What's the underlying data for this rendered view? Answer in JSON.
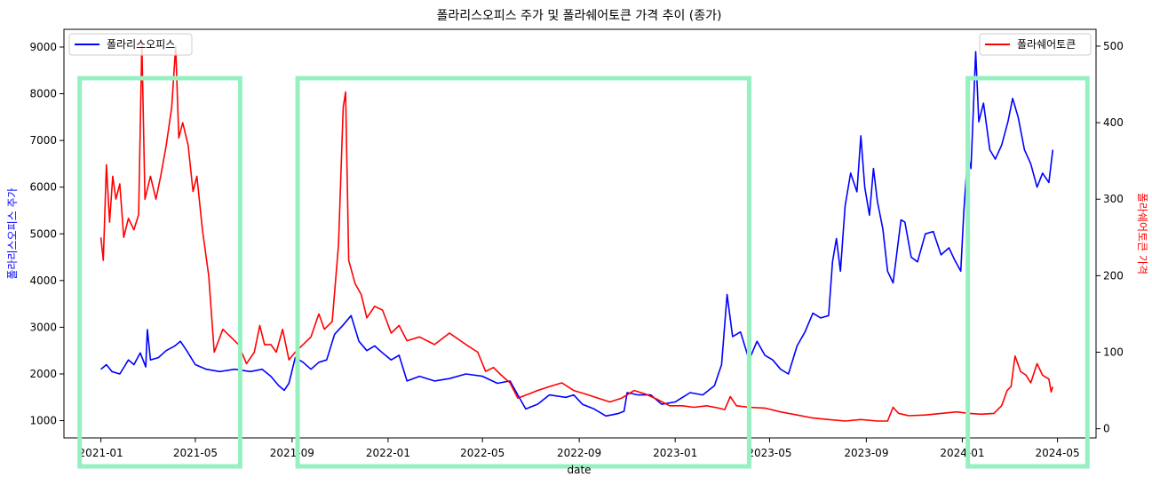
{
  "chart_data": {
    "type": "line",
    "title": "폴라리스오피스 주가 및 폴라쉐어토큰 가격 추이 (종가)",
    "xlabel": "date",
    "x_ticks": [
      "2021-01",
      "2021-05",
      "2021-09",
      "2022-01",
      "2022-05",
      "2022-09",
      "2023-01",
      "2023-05",
      "2023-09",
      "2024-01",
      "2024-05"
    ],
    "y_left": {
      "label": "폴라리스오피스 주가",
      "color": "#0000ff",
      "ylim": [
        630,
        9380
      ],
      "ticks": [
        1000,
        2000,
        3000,
        4000,
        5000,
        6000,
        7000,
        8000,
        9000
      ]
    },
    "y_right": {
      "label": "폴라쉐어토큰 가격",
      "color": "#ff0000",
      "ylim": [
        -12,
        522
      ],
      "ticks": [
        0,
        100,
        200,
        300,
        400,
        500
      ]
    },
    "series": [
      {
        "name": "폴라리스오피스",
        "axis": "left",
        "color": "#0000ff",
        "points": [
          [
            "2021-01-01",
            2100
          ],
          [
            "2021-01-08",
            2200
          ],
          [
            "2021-01-15",
            2050
          ],
          [
            "2021-01-25",
            2000
          ],
          [
            "2021-02-05",
            2300
          ],
          [
            "2021-02-12",
            2200
          ],
          [
            "2021-02-20",
            2450
          ],
          [
            "2021-02-27",
            2150
          ],
          [
            "2021-03-01",
            2950
          ],
          [
            "2021-03-05",
            2300
          ],
          [
            "2021-03-15",
            2350
          ],
          [
            "2021-03-25",
            2500
          ],
          [
            "2021-04-05",
            2600
          ],
          [
            "2021-04-12",
            2700
          ],
          [
            "2021-04-20",
            2500
          ],
          [
            "2021-05-01",
            2200
          ],
          [
            "2021-05-15",
            2100
          ],
          [
            "2021-06-01",
            2050
          ],
          [
            "2021-06-20",
            2100
          ],
          [
            "2021-07-10",
            2050
          ],
          [
            "2021-07-25",
            2100
          ],
          [
            "2021-08-05",
            1950
          ],
          [
            "2021-08-15",
            1750
          ],
          [
            "2021-08-22",
            1650
          ],
          [
            "2021-08-28",
            1800
          ],
          [
            "2021-09-05",
            2350
          ],
          [
            "2021-09-15",
            2250
          ],
          [
            "2021-09-25",
            2100
          ],
          [
            "2021-10-05",
            2250
          ],
          [
            "2021-10-15",
            2300
          ],
          [
            "2021-10-25",
            2850
          ],
          [
            "2021-11-05",
            3050
          ],
          [
            "2021-11-15",
            3250
          ],
          [
            "2021-11-25",
            2700
          ],
          [
            "2021-12-05",
            2500
          ],
          [
            "2021-12-15",
            2600
          ],
          [
            "2021-12-25",
            2450
          ],
          [
            "2022-01-05",
            2300
          ],
          [
            "2022-01-15",
            2400
          ],
          [
            "2022-01-25",
            1850
          ],
          [
            "2022-02-10",
            1950
          ],
          [
            "2022-03-01",
            1850
          ],
          [
            "2022-03-20",
            1900
          ],
          [
            "2022-04-10",
            2000
          ],
          [
            "2022-05-01",
            1950
          ],
          [
            "2022-05-20",
            1800
          ],
          [
            "2022-06-05",
            1850
          ],
          [
            "2022-06-15",
            1550
          ],
          [
            "2022-06-25",
            1250
          ],
          [
            "2022-07-10",
            1350
          ],
          [
            "2022-07-25",
            1550
          ],
          [
            "2022-08-15",
            1500
          ],
          [
            "2022-08-25",
            1550
          ],
          [
            "2022-09-05",
            1350
          ],
          [
            "2022-09-20",
            1250
          ],
          [
            "2022-10-05",
            1100
          ],
          [
            "2022-10-20",
            1150
          ],
          [
            "2022-10-28",
            1200
          ],
          [
            "2022-11-01",
            1600
          ],
          [
            "2022-11-15",
            1550
          ],
          [
            "2022-12-01",
            1550
          ],
          [
            "2022-12-15",
            1350
          ],
          [
            "2023-01-01",
            1400
          ],
          [
            "2023-01-20",
            1600
          ],
          [
            "2023-02-05",
            1550
          ],
          [
            "2023-02-20",
            1750
          ],
          [
            "2023-03-01",
            2200
          ],
          [
            "2023-03-08",
            3700
          ],
          [
            "2023-03-15",
            2800
          ],
          [
            "2023-03-25",
            2900
          ],
          [
            "2023-04-05",
            2300
          ],
          [
            "2023-04-15",
            2700
          ],
          [
            "2023-04-25",
            2400
          ],
          [
            "2023-05-05",
            2300
          ],
          [
            "2023-05-15",
            2100
          ],
          [
            "2023-05-25",
            2000
          ],
          [
            "2023-06-05",
            2600
          ],
          [
            "2023-06-15",
            2900
          ],
          [
            "2023-06-25",
            3300
          ],
          [
            "2023-07-05",
            3200
          ],
          [
            "2023-07-15",
            3250
          ],
          [
            "2023-07-20",
            4400
          ],
          [
            "2023-07-25",
            4900
          ],
          [
            "2023-07-30",
            4200
          ],
          [
            "2023-08-05",
            5600
          ],
          [
            "2023-08-12",
            6300
          ],
          [
            "2023-08-20",
            5900
          ],
          [
            "2023-08-25",
            7100
          ],
          [
            "2023-08-30",
            6000
          ],
          [
            "2023-09-05",
            5400
          ],
          [
            "2023-09-10",
            6400
          ],
          [
            "2023-09-15",
            5700
          ],
          [
            "2023-09-22",
            5100
          ],
          [
            "2023-09-28",
            4200
          ],
          [
            "2023-10-05",
            3950
          ],
          [
            "2023-10-15",
            5300
          ],
          [
            "2023-10-20",
            5250
          ],
          [
            "2023-10-28",
            4500
          ],
          [
            "2023-11-05",
            4400
          ],
          [
            "2023-11-15",
            5000
          ],
          [
            "2023-11-25",
            5050
          ],
          [
            "2023-12-05",
            4550
          ],
          [
            "2023-12-15",
            4700
          ],
          [
            "2023-12-22",
            4450
          ],
          [
            "2023-12-30",
            4200
          ],
          [
            "2024-01-03",
            5500
          ],
          [
            "2024-01-08",
            6700
          ],
          [
            "2024-01-12",
            6400
          ],
          [
            "2024-01-18",
            8900
          ],
          [
            "2024-01-22",
            7400
          ],
          [
            "2024-01-28",
            7800
          ],
          [
            "2024-02-05",
            6800
          ],
          [
            "2024-02-12",
            6600
          ],
          [
            "2024-02-20",
            6900
          ],
          [
            "2024-02-28",
            7400
          ],
          [
            "2024-03-05",
            7900
          ],
          [
            "2024-03-12",
            7500
          ],
          [
            "2024-03-20",
            6800
          ],
          [
            "2024-03-28",
            6500
          ],
          [
            "2024-04-05",
            6000
          ],
          [
            "2024-04-12",
            6300
          ],
          [
            "2024-04-20",
            6100
          ],
          [
            "2024-04-25",
            6800
          ]
        ]
      },
      {
        "name": "폴라쉐어토큰",
        "axis": "right",
        "color": "#ff0000",
        "points": [
          [
            "2021-01-01",
            250
          ],
          [
            "2021-01-04",
            220
          ],
          [
            "2021-01-08",
            345
          ],
          [
            "2021-01-12",
            270
          ],
          [
            "2021-01-16",
            330
          ],
          [
            "2021-01-20",
            300
          ],
          [
            "2021-01-25",
            320
          ],
          [
            "2021-01-30",
            250
          ],
          [
            "2021-02-05",
            275
          ],
          [
            "2021-02-12",
            260
          ],
          [
            "2021-02-18",
            280
          ],
          [
            "2021-02-22",
            505
          ],
          [
            "2021-02-26",
            300
          ],
          [
            "2021-03-05",
            330
          ],
          [
            "2021-03-12",
            300
          ],
          [
            "2021-03-18",
            330
          ],
          [
            "2021-03-25",
            370
          ],
          [
            "2021-04-01",
            420
          ],
          [
            "2021-04-06",
            500
          ],
          [
            "2021-04-10",
            380
          ],
          [
            "2021-04-15",
            400
          ],
          [
            "2021-04-22",
            370
          ],
          [
            "2021-04-28",
            310
          ],
          [
            "2021-05-03",
            330
          ],
          [
            "2021-05-10",
            260
          ],
          [
            "2021-05-18",
            200
          ],
          [
            "2021-05-25",
            100
          ],
          [
            "2021-06-05",
            130
          ],
          [
            "2021-06-15",
            120
          ],
          [
            "2021-06-25",
            110
          ],
          [
            "2021-07-05",
            85
          ],
          [
            "2021-07-15",
            100
          ],
          [
            "2021-07-22",
            135
          ],
          [
            "2021-07-28",
            110
          ],
          [
            "2021-08-05",
            110
          ],
          [
            "2021-08-12",
            100
          ],
          [
            "2021-08-20",
            130
          ],
          [
            "2021-08-28",
            90
          ],
          [
            "2021-09-05",
            100
          ],
          [
            "2021-09-15",
            110
          ],
          [
            "2021-09-25",
            120
          ],
          [
            "2021-10-05",
            150
          ],
          [
            "2021-10-12",
            130
          ],
          [
            "2021-10-22",
            140
          ],
          [
            "2021-10-30",
            240
          ],
          [
            "2021-11-05",
            420
          ],
          [
            "2021-11-08",
            440
          ],
          [
            "2021-11-12",
            220
          ],
          [
            "2021-11-20",
            190
          ],
          [
            "2021-11-28",
            175
          ],
          [
            "2021-12-05",
            145
          ],
          [
            "2021-12-15",
            160
          ],
          [
            "2021-12-25",
            155
          ],
          [
            "2022-01-05",
            125
          ],
          [
            "2022-01-15",
            135
          ],
          [
            "2022-01-25",
            115
          ],
          [
            "2022-02-10",
            120
          ],
          [
            "2022-03-01",
            110
          ],
          [
            "2022-03-20",
            125
          ],
          [
            "2022-04-10",
            110
          ],
          [
            "2022-04-25",
            100
          ],
          [
            "2022-05-05",
            75
          ],
          [
            "2022-05-15",
            80
          ],
          [
            "2022-05-25",
            70
          ],
          [
            "2022-06-05",
            60
          ],
          [
            "2022-06-15",
            40
          ],
          [
            "2022-06-28",
            45
          ],
          [
            "2022-07-10",
            50
          ],
          [
            "2022-07-25",
            55
          ],
          [
            "2022-08-10",
            60
          ],
          [
            "2022-08-25",
            50
          ],
          [
            "2022-09-10",
            45
          ],
          [
            "2022-09-25",
            40
          ],
          [
            "2022-10-10",
            35
          ],
          [
            "2022-10-25",
            40
          ],
          [
            "2022-11-10",
            50
          ],
          [
            "2022-11-25",
            45
          ],
          [
            "2022-12-10",
            38
          ],
          [
            "2022-12-25",
            30
          ],
          [
            "2023-01-10",
            30
          ],
          [
            "2023-01-25",
            28
          ],
          [
            "2023-02-10",
            30
          ],
          [
            "2023-02-25",
            27
          ],
          [
            "2023-03-05",
            25
          ],
          [
            "2023-03-12",
            42
          ],
          [
            "2023-03-20",
            30
          ],
          [
            "2023-04-05",
            28
          ],
          [
            "2023-04-25",
            27
          ],
          [
            "2023-05-15",
            22
          ],
          [
            "2023-06-05",
            18
          ],
          [
            "2023-06-25",
            14
          ],
          [
            "2023-07-15",
            12
          ],
          [
            "2023-08-05",
            10
          ],
          [
            "2023-08-25",
            12
          ],
          [
            "2023-09-15",
            10
          ],
          [
            "2023-09-28",
            10
          ],
          [
            "2023-10-05",
            28
          ],
          [
            "2023-10-12",
            20
          ],
          [
            "2023-10-25",
            17
          ],
          [
            "2023-11-15",
            18
          ],
          [
            "2023-12-05",
            20
          ],
          [
            "2023-12-25",
            22
          ],
          [
            "2024-01-10",
            20
          ],
          [
            "2024-01-25",
            19
          ],
          [
            "2024-02-10",
            20
          ],
          [
            "2024-02-20",
            30
          ],
          [
            "2024-02-27",
            50
          ],
          [
            "2024-03-03",
            55
          ],
          [
            "2024-03-08",
            95
          ],
          [
            "2024-03-15",
            75
          ],
          [
            "2024-03-22",
            70
          ],
          [
            "2024-03-28",
            60
          ],
          [
            "2024-04-05",
            85
          ],
          [
            "2024-04-12",
            70
          ],
          [
            "2024-04-20",
            65
          ],
          [
            "2024-04-23",
            48
          ],
          [
            "2024-04-25",
            55
          ]
        ]
      }
    ],
    "legend": [
      {
        "label": "폴라리스오피스",
        "color": "#0000ff",
        "position": "top-left"
      },
      {
        "label": "폴라쉐어토큰",
        "color": "#ff0000",
        "position": "top-right"
      }
    ],
    "highlight_boxes": {
      "color": "#96f0c0",
      "ranges": [
        [
          "2020-12-05",
          "2021-06-27"
        ],
        [
          "2021-09-08",
          "2023-04-05"
        ],
        [
          "2024-01-08",
          "2024-06-08"
        ]
      ]
    }
  }
}
